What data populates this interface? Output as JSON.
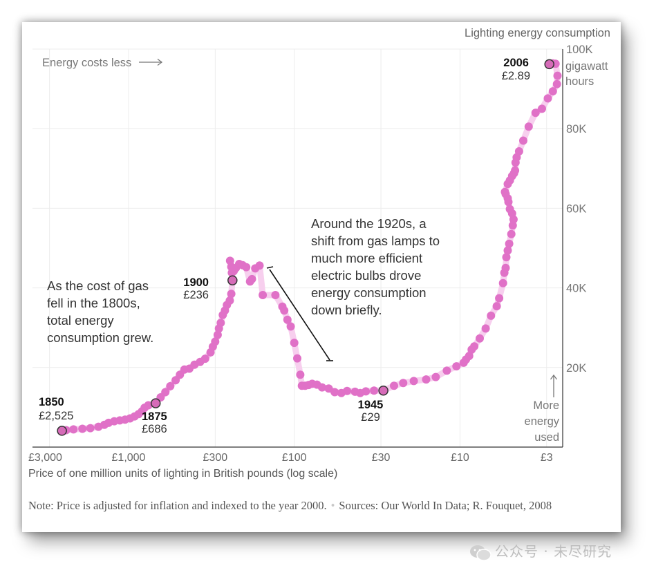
{
  "chart_data": {
    "type": "scatter",
    "title": "Lighting energy consumption",
    "xlabel": "Price of one million units of lighting in British pounds (log scale)",
    "y_unit_label": [
      "gigawatt",
      "hours"
    ],
    "x_scale": "log",
    "x_axis_reversed": true,
    "xlim": [
      3800,
      2.4
    ],
    "ylim": [
      0,
      100000
    ],
    "x_ticks": [
      {
        "value": 3000,
        "label": "£3,000"
      },
      {
        "value": 1000,
        "label": "£1,000"
      },
      {
        "value": 300,
        "label": "£300"
      },
      {
        "value": 100,
        "label": "£100"
      },
      {
        "value": 30,
        "label": "£30"
      },
      {
        "value": 10,
        "label": "£10"
      },
      {
        "value": 3,
        "label": "£3"
      }
    ],
    "y_ticks": [
      {
        "value": 20000,
        "label": "20K"
      },
      {
        "value": 40000,
        "label": "40K"
      },
      {
        "value": 60000,
        "label": "60K"
      },
      {
        "value": 80000,
        "label": "80K"
      },
      {
        "value": 100000,
        "label": "100K"
      }
    ],
    "grid": true,
    "point_color": "#e071c7",
    "line_color": "#f7cfee",
    "series": [
      {
        "values": [
          [
            2525,
            4100
          ],
          [
            2380,
            4250
          ],
          [
            2150,
            4450
          ],
          [
            1900,
            4600
          ],
          [
            1700,
            4750
          ],
          [
            1520,
            5100
          ],
          [
            1400,
            5600
          ],
          [
            1320,
            6100
          ],
          [
            1220,
            6500
          ],
          [
            1130,
            6700
          ],
          [
            1050,
            6900
          ],
          [
            980,
            7200
          ],
          [
            920,
            7700
          ],
          [
            870,
            8300
          ],
          [
            830,
            9000
          ],
          [
            800,
            9900
          ],
          [
            760,
            10500
          ],
          [
            686,
            11000
          ],
          [
            640,
            12500
          ],
          [
            600,
            13800
          ],
          [
            560,
            15300
          ],
          [
            520,
            16800
          ],
          [
            490,
            18200
          ],
          [
            460,
            19500
          ],
          [
            430,
            19700
          ],
          [
            400,
            20700
          ],
          [
            370,
            21400
          ],
          [
            345,
            22200
          ],
          [
            320,
            23800
          ],
          [
            310,
            25200
          ],
          [
            300,
            26500
          ],
          [
            290,
            28200
          ],
          [
            285,
            29800
          ],
          [
            278,
            31200
          ],
          [
            270,
            33200
          ],
          [
            262,
            34300
          ],
          [
            255,
            35700
          ],
          [
            245,
            36800
          ],
          [
            240,
            38500
          ],
          [
            236,
            41900
          ],
          [
            238,
            43800
          ],
          [
            240,
            45300
          ],
          [
            244,
            46800
          ],
          [
            232,
            44200
          ],
          [
            225,
            45000
          ],
          [
            215,
            46000
          ],
          [
            205,
            45700
          ],
          [
            195,
            45200
          ],
          [
            185,
            41600
          ],
          [
            180,
            42200
          ],
          [
            172,
            44900
          ],
          [
            162,
            45600
          ],
          [
            155,
            38200
          ],
          [
            130,
            38200
          ],
          [
            118,
            35300
          ],
          [
            115,
            34300
          ],
          [
            110,
            32000
          ],
          [
            105,
            30300
          ],
          [
            100,
            26200
          ],
          [
            96,
            22300
          ],
          [
            92,
            18200
          ],
          [
            90,
            15400
          ],
          [
            86,
            15400
          ],
          [
            82,
            15600
          ],
          [
            78,
            15900
          ],
          [
            73,
            15700
          ],
          [
            68,
            15000
          ],
          [
            62,
            14700
          ],
          [
            57,
            13800
          ],
          [
            52,
            13600
          ],
          [
            48,
            14100
          ],
          [
            43,
            13900
          ],
          [
            40,
            13600
          ],
          [
            37,
            14000
          ],
          [
            33,
            14200
          ],
          [
            29,
            14200
          ],
          [
            25,
            15400
          ],
          [
            22,
            16100
          ],
          [
            19,
            16600
          ],
          [
            16,
            17000
          ],
          [
            14,
            17600
          ],
          [
            12,
            19200
          ],
          [
            10.5,
            20300
          ],
          [
            9.5,
            21200
          ],
          [
            9.2,
            22000
          ],
          [
            8.8,
            22900
          ],
          [
            8.5,
            24500
          ],
          [
            8.2,
            25300
          ],
          [
            7.6,
            27300
          ],
          [
            7.0,
            29800
          ],
          [
            6.5,
            33000
          ],
          [
            6.0,
            35400
          ],
          [
            5.8,
            37400
          ],
          [
            5.5,
            41200
          ],
          [
            5.4,
            43800
          ],
          [
            5.3,
            45000
          ],
          [
            5.25,
            47700
          ],
          [
            5.15,
            49400
          ],
          [
            5.05,
            51100
          ],
          [
            4.9,
            53500
          ],
          [
            4.8,
            55700
          ],
          [
            4.75,
            57200
          ],
          [
            4.85,
            58700
          ],
          [
            5.0,
            59800
          ],
          [
            5.1,
            61600
          ],
          [
            5.15,
            62500
          ],
          [
            5.3,
            63600
          ],
          [
            5.35,
            64100
          ],
          [
            5.15,
            66100
          ],
          [
            5.0,
            67000
          ],
          [
            4.85,
            68100
          ],
          [
            4.72,
            68800
          ],
          [
            4.65,
            69500
          ],
          [
            4.62,
            71500
          ],
          [
            4.55,
            72800
          ],
          [
            4.4,
            74300
          ],
          [
            4.15,
            77000
          ],
          [
            3.85,
            80500
          ],
          [
            3.5,
            84000
          ],
          [
            3.2,
            85000
          ],
          [
            2.95,
            87600
          ],
          [
            2.75,
            89400
          ],
          [
            2.6,
            91200
          ],
          [
            2.58,
            93300
          ],
          [
            2.65,
            96300
          ],
          [
            2.75,
            96400
          ],
          [
            2.89,
            96200
          ]
        ]
      }
    ],
    "highlights": [
      {
        "year": "1850",
        "price": "£2,525",
        "x": 2525,
        "y": 4100
      },
      {
        "year": "1875",
        "price": "£686",
        "x": 686,
        "y": 11000
      },
      {
        "year": "1900",
        "price": "£236",
        "x": 236,
        "y": 41900
      },
      {
        "year": "1945",
        "price": "£29",
        "x": 29,
        "y": 14200
      },
      {
        "year": "2006",
        "price": "£2.89",
        "x": 2.89,
        "y": 96200
      }
    ],
    "annotations": {
      "top_left": "Energy costs less",
      "left_text": [
        "As the cost of gas",
        "fell in the 1800s,",
        "total energy",
        "consumption grew."
      ],
      "right_text": [
        "Around the 1920s, a",
        "shift from gas lamps to",
        "much more efficient",
        "electric bulbs drove",
        "energy consumption",
        "down briefly."
      ],
      "bottom_right": [
        "More",
        "energy",
        "used"
      ]
    }
  },
  "footer": {
    "note": "Note: Price is adjusted for inflation and indexed to the year 2000.",
    "sources": "Sources: Our World In Data; R. Fouquet, 2008"
  },
  "watermark": "公众号 · 未尽研究"
}
